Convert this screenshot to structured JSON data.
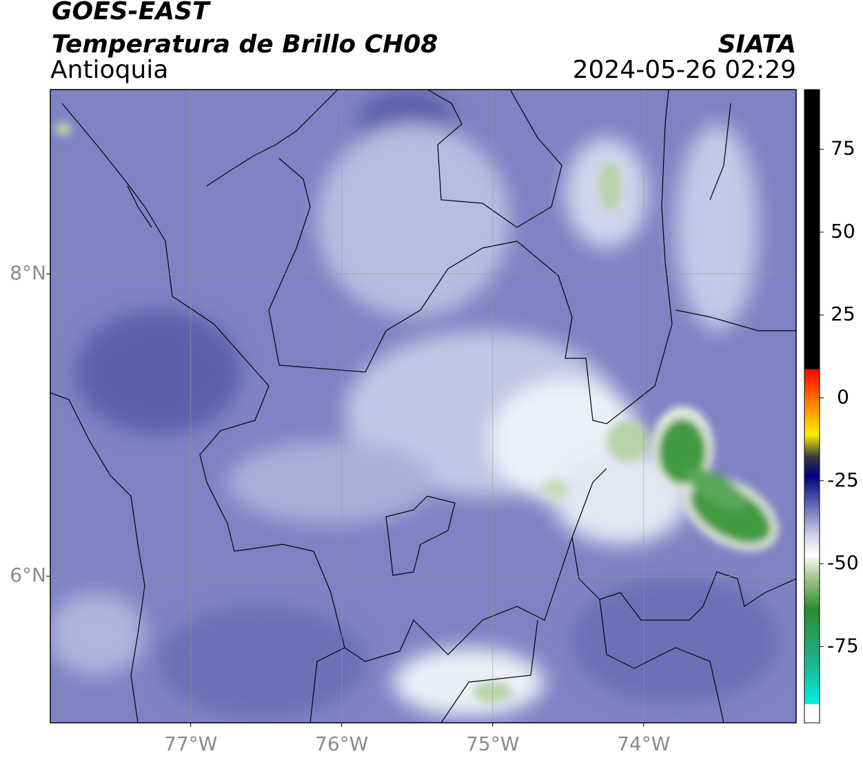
{
  "header": {
    "title": "GOES-EAST",
    "subtitle": "Temperatura de Brillo CH08",
    "region": "Antioquia",
    "source": "SIATA",
    "datetime": "2024-05-26 02:29"
  },
  "map": {
    "xlim": [
      -77.93,
      -72.99
    ],
    "ylim": [
      5.03,
      9.22
    ],
    "xticks": [
      {
        "value": -77,
        "label": "77°W"
      },
      {
        "value": -76,
        "label": "76°W"
      },
      {
        "value": -75,
        "label": "75°W"
      },
      {
        "value": -74,
        "label": "74°W"
      }
    ],
    "yticks": [
      {
        "value": 6,
        "label": "6°N"
      },
      {
        "value": 8,
        "label": "8°N"
      }
    ],
    "grid": true
  },
  "colorbar": {
    "lim": [
      -98,
      93
    ],
    "ticks": [
      -75,
      -50,
      -25,
      0,
      25,
      50,
      75
    ]
  }
}
